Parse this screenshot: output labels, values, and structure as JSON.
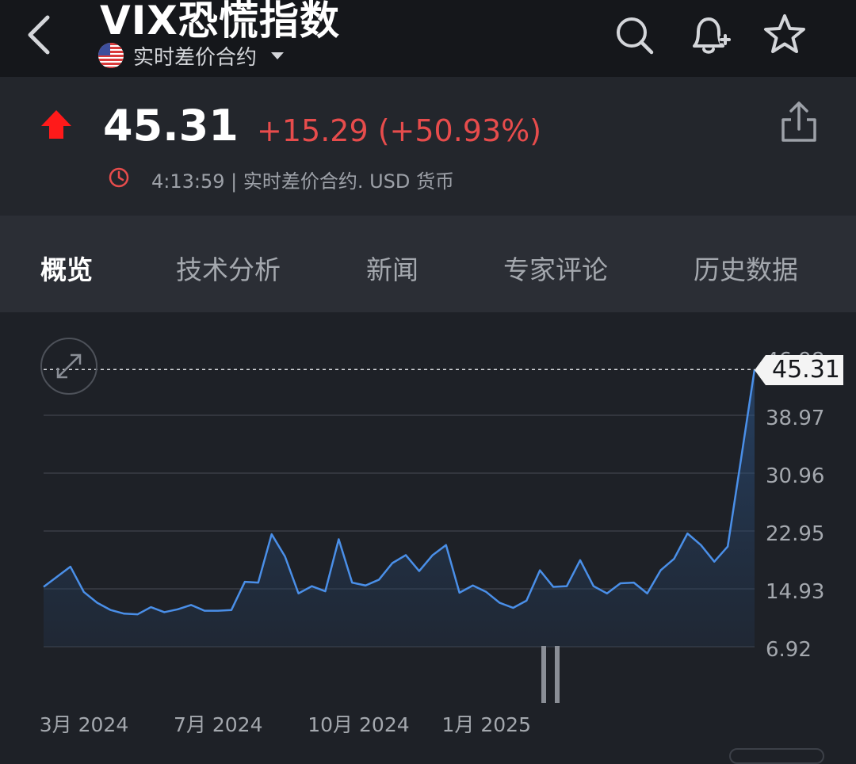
{
  "header": {
    "title": "VIX恐慌指数",
    "subtitle": "实时差价合约",
    "icons": [
      "back-arrow-icon",
      "us-flag-icon",
      "search-icon",
      "bell-plus-icon",
      "star-icon"
    ]
  },
  "quote": {
    "price": "45.31",
    "change": "+15.29 (+50.93%)",
    "timestamp": "4:13:59 | 实时差价合约.  USD 货币",
    "colors": {
      "up": "#e74c4c",
      "arrow": "#ff1a1a",
      "clock": "#e74c4c"
    }
  },
  "tabs": [
    {
      "label": "概览",
      "active": true
    },
    {
      "label": "技术分析",
      "active": false
    },
    {
      "label": "新闻",
      "active": false
    },
    {
      "label": "专家评论",
      "active": false
    },
    {
      "label": "历史数据",
      "active": false
    }
  ],
  "chart_data": {
    "type": "area",
    "title": "",
    "xlabel": "",
    "ylabel": "",
    "y_ticks": [
      "46.98",
      "38.97",
      "30.96",
      "22.95",
      "14.93",
      "6.92"
    ],
    "y_tick_values": [
      46.98,
      38.97,
      30.96,
      22.95,
      14.93,
      6.92
    ],
    "ylim": [
      6.92,
      46.98
    ],
    "x_ticks": [
      "3月 2024",
      "7月 2024",
      "10月 2024",
      "1月 2025"
    ],
    "x_tick_index": [
      3,
      13,
      23,
      33
    ],
    "current_value_label": "45.31",
    "current_value": 45.31,
    "grid": true,
    "line_color": "#4a8fe8",
    "series": [
      {
        "values": [
          15.2,
          16.6,
          18.0,
          14.5,
          13.0,
          12.0,
          11.5,
          11.4,
          12.4,
          11.7,
          12.1,
          12.7,
          11.9,
          11.9,
          12.0,
          15.9,
          15.8,
          22.5,
          19.4,
          14.3,
          15.3,
          14.6,
          21.8,
          15.8,
          15.4,
          16.2,
          18.5,
          19.6,
          17.4,
          19.6,
          21.0,
          14.4,
          15.4,
          14.5,
          13.0,
          12.3,
          13.3,
          17.5,
          15.2,
          15.3,
          18.9,
          15.3,
          14.3,
          15.7,
          15.8,
          14.3,
          17.5,
          19.1,
          22.6,
          21.0,
          18.7,
          20.8,
          33.0,
          45.31
        ]
      }
    ]
  }
}
